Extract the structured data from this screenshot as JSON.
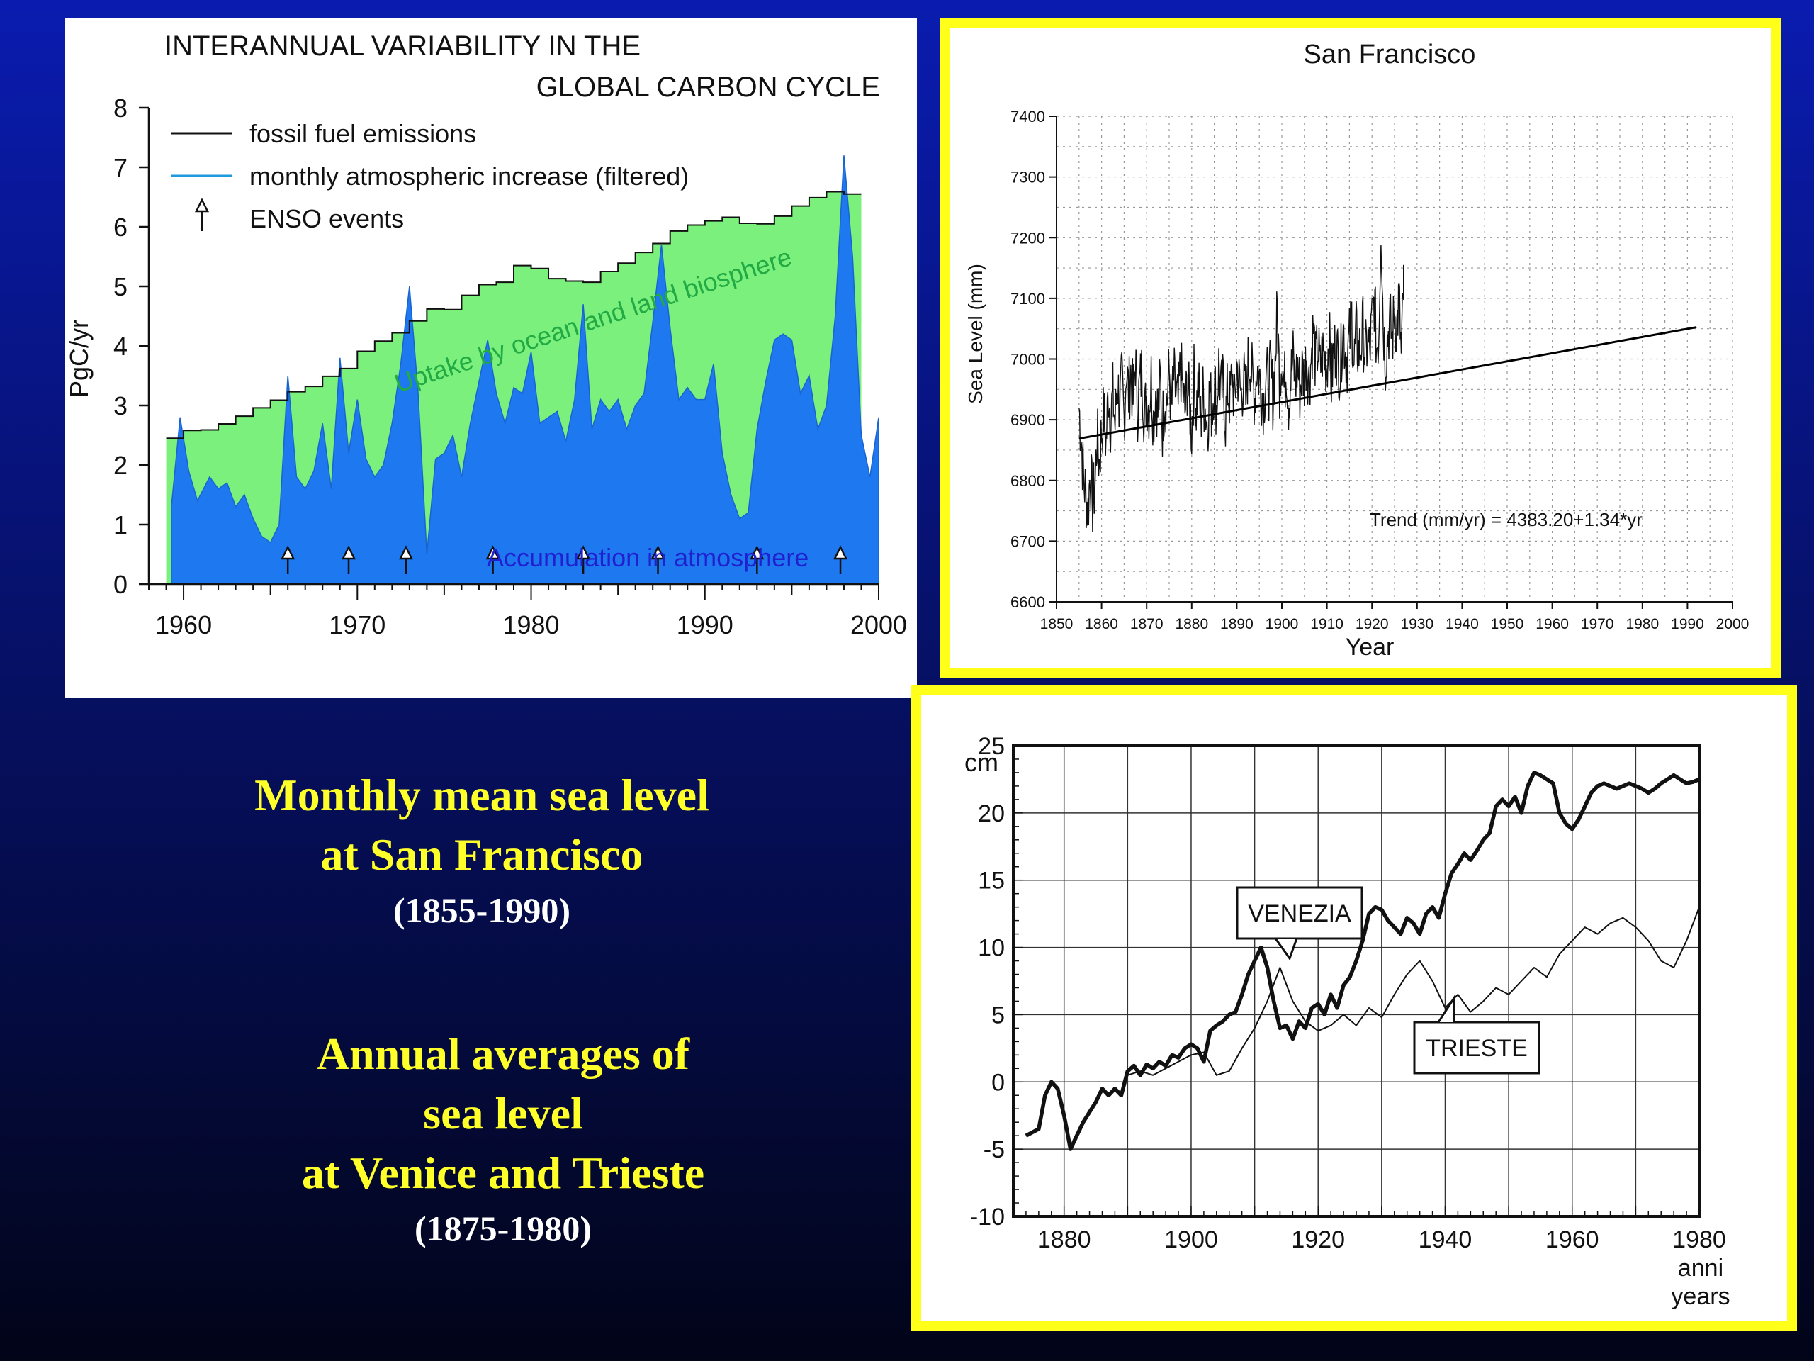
{
  "captions": {
    "sf": {
      "line1": "Monthly mean sea level",
      "line2": "at San Francisco",
      "years": "(1855-1990)"
    },
    "venice": {
      "line1": "Annual averages of",
      "line2": "sea level",
      "line3": "at Venice and Trieste",
      "years": "(1875-1980)"
    }
  },
  "colors": {
    "frame": "#ffff1a",
    "caption": "#ffff2a",
    "uptake_fill": "#7cf07c",
    "atmosphere_fill": "#1e78f0",
    "atmosphere_label": "#2020d0",
    "uptake_label": "#22aa44"
  },
  "chart_data": [
    {
      "type": "area",
      "title": "INTERANNUAL VARIABILITY IN THE GLOBAL CARBON CYCLE",
      "title_line1": "INTERANNUAL VARIABILITY IN THE",
      "title_line2": "GLOBAL CARBON CYCLE",
      "ylabel": "PgC/yr",
      "xlim": [
        1958,
        2000
      ],
      "ylim": [
        0,
        8
      ],
      "x_ticks": [
        1960,
        1970,
        1980,
        1990,
        2000
      ],
      "y_ticks": [
        0,
        1,
        2,
        3,
        4,
        5,
        6,
        7,
        8
      ],
      "legend": {
        "placement": "top-left",
        "entries": [
          "fossil fuel emissions",
          "monthly atmospheric increase (filtered)",
          "ENSO events"
        ]
      },
      "annotations": {
        "uptake": "Uptake by ocean and land biosphere",
        "atmosphere": "Accumulation in atmosphere"
      },
      "enso_events": [
        1966,
        1969.5,
        1972.8,
        1977.8,
        1983,
        1987.3,
        1993,
        1997.8
      ],
      "series": [
        {
          "name": "fossil fuel emissions",
          "x": [
            1959,
            1960,
            1961,
            1962,
            1963,
            1964,
            1965,
            1966,
            1967,
            1968,
            1969,
            1970,
            1971,
            1972,
            1973,
            1974,
            1975,
            1976,
            1977,
            1978,
            1979,
            1980,
            1981,
            1982,
            1983,
            1984,
            1985,
            1986,
            1987,
            1988,
            1989,
            1990,
            1991,
            1992,
            1993,
            1994,
            1995,
            1996,
            1997,
            1998
          ],
          "values": [
            2.45,
            2.58,
            2.59,
            2.69,
            2.82,
            2.96,
            3.09,
            3.23,
            3.32,
            3.49,
            3.62,
            3.91,
            4.08,
            4.22,
            4.42,
            4.62,
            4.61,
            4.85,
            5.03,
            5.07,
            5.35,
            5.3,
            5.13,
            5.09,
            5.07,
            5.25,
            5.39,
            5.57,
            5.72,
            5.93,
            6.03,
            6.1,
            6.16,
            6.06,
            6.05,
            6.18,
            6.35,
            6.49,
            6.59,
            6.55
          ]
        },
        {
          "name": "monthly atmospheric increase (filtered)",
          "x": [
            1959.3,
            1959.8,
            1960.3,
            1960.8,
            1961.5,
            1962,
            1962.5,
            1963,
            1963.5,
            1964,
            1964.5,
            1965,
            1965.5,
            1966,
            1966.5,
            1967,
            1967.5,
            1968,
            1968.5,
            1969,
            1969.5,
            1970,
            1970.5,
            1971,
            1971.5,
            1972,
            1972.5,
            1973,
            1973.5,
            1974,
            1974.5,
            1975,
            1975.5,
            1976,
            1976.5,
            1977,
            1977.5,
            1978,
            1978.5,
            1979,
            1979.5,
            1980,
            1980.5,
            1981,
            1981.5,
            1982,
            1982.5,
            1983,
            1983.5,
            1984,
            1984.5,
            1985,
            1985.5,
            1986,
            1986.5,
            1987,
            1987.5,
            1988,
            1988.5,
            1989,
            1989.5,
            1990,
            1990.5,
            1991,
            1991.5,
            1992,
            1992.5,
            1993,
            1993.5,
            1994,
            1994.5,
            1995,
            1995.5,
            1996,
            1996.5,
            1997,
            1997.5,
            1998,
            1998.5,
            1999,
            1999.5,
            2000
          ],
          "values": [
            1.3,
            2.8,
            1.9,
            1.4,
            1.8,
            1.6,
            1.7,
            1.3,
            1.5,
            1.1,
            0.8,
            0.7,
            1.0,
            3.5,
            1.8,
            1.6,
            1.9,
            2.7,
            1.6,
            3.8,
            2.2,
            3.1,
            2.1,
            1.8,
            2.0,
            2.7,
            3.7,
            5.0,
            3.2,
            0.5,
            2.1,
            2.2,
            2.5,
            1.8,
            2.7,
            3.4,
            4.1,
            3.2,
            2.7,
            3.3,
            3.2,
            3.9,
            2.7,
            2.8,
            2.9,
            2.4,
            3.1,
            4.7,
            2.6,
            3.1,
            2.9,
            3.1,
            2.6,
            3.0,
            3.2,
            4.4,
            5.7,
            4.3,
            3.1,
            3.3,
            3.1,
            3.1,
            3.7,
            2.2,
            1.5,
            1.1,
            1.2,
            2.6,
            3.4,
            4.1,
            4.2,
            4.1,
            3.2,
            3.5,
            2.6,
            3.0,
            4.5,
            7.2,
            5.5,
            2.5,
            1.8,
            2.8
          ]
        }
      ]
    },
    {
      "type": "line",
      "title": "San Francisco",
      "xlabel": "Year",
      "ylabel": "Sea Level (mm)",
      "xlim": [
        1850,
        2000
      ],
      "ylim": [
        6600,
        7400
      ],
      "x_ticks": [
        1850,
        1860,
        1870,
        1880,
        1890,
        1900,
        1910,
        1920,
        1930,
        1940,
        1950,
        1960,
        1970,
        1980,
        1990,
        2000
      ],
      "y_ticks": [
        6600,
        6700,
        6800,
        6900,
        7000,
        7100,
        7200,
        7300,
        7400
      ],
      "grid": true,
      "trend_label": "Trend (mm/yr) = 4383.20+1.34*yr",
      "trend": {
        "intercept": 4383.2,
        "slope": 1.34,
        "x": [
          1855,
          1992
        ]
      },
      "series": [
        {
          "name": "monthly mean sea level",
          "x_start": 1855,
          "x_step": 0.5,
          "values": [
            6920,
            6870,
            6800,
            6780,
            6750,
            6820,
            6760,
            6790,
            6870,
            6830,
            6880,
            6910,
            6860,
            6950,
            6900,
            6940,
            6890,
            6970,
            6920,
            6960,
            6900,
            6990,
            6940,
            6980,
            6930,
            7000,
            6920,
            6960,
            6980,
            6900,
            6940,
            6920,
            6970,
            6900,
            6950,
            6910,
            6960,
            6890,
            6940,
            6930,
            6980,
            6910,
            6970,
            6940,
            6920,
            6990,
            6950,
            6910,
            6960,
            6930,
            6880,
            6970,
            6920,
            6960,
            6900,
            6940,
            6920,
            6890,
            6950,
            6910,
            6970,
            6920,
            6990,
            6940,
            6960,
            6900,
            6950,
            6930,
            6980,
            6920,
            6990,
            6960,
            6940,
            6970,
            6930,
            6990,
            7000,
            6960,
            6940,
            6990,
            6970,
            6950,
            6930,
            6980,
            6950,
            6980,
            6940,
            6990,
            7080,
            6960,
            7010,
            6950,
            6990,
            6930,
            6970,
            7000,
            6960,
            6990,
            6950,
            6980,
            6970,
            7010,
            6960,
            7000,
            7050,
            6990,
            7020,
            6980,
            7010,
            7000,
            6990,
            7040,
            6960,
            7010,
            7020,
            7000,
            6980,
            7060,
            7020,
            7000,
            7030,
            7070,
            6990,
            7040,
            7010,
            7020,
            7050,
            7000,
            7030,
            7010,
            7060,
            7100,
            7020,
            7040,
            7230,
            7060,
            7000,
            7040,
            7060,
            7030,
            7080,
            7050,
            7100,
            7000,
            7110
          ]
        }
      ]
    },
    {
      "type": "line",
      "ylabel": "cm",
      "xlabel": "anni\nyears",
      "xlabel_line1": "anni",
      "xlabel_line2": "years",
      "xlim": [
        1872,
        1980
      ],
      "ylim": [
        -10,
        25
      ],
      "x_ticks": [
        1880,
        1900,
        1920,
        1940,
        1960,
        1980
      ],
      "y_ticks": [
        -10,
        -5,
        0,
        5,
        10,
        15,
        20,
        25
      ],
      "grid": true,
      "series": [
        {
          "name": "VENEZIA",
          "x": [
            1874,
            1876,
            1877,
            1878,
            1879,
            1880,
            1881,
            1882,
            1883,
            1885,
            1886,
            1887,
            1888,
            1889,
            1890,
            1891,
            1892,
            1893,
            1894,
            1895,
            1896,
            1897,
            1898,
            1899,
            1900,
            1901,
            1902,
            1903,
            1904,
            1905,
            1906,
            1907,
            1908,
            1909,
            1910,
            1911,
            1912,
            1913,
            1914,
            1915,
            1916,
            1917,
            1918,
            1919,
            1920,
            1921,
            1922,
            1923,
            1924,
            1925,
            1926,
            1927,
            1928,
            1929,
            1930,
            1931,
            1932,
            1933,
            1934,
            1935,
            1936,
            1937,
            1938,
            1939,
            1940,
            1941,
            1942,
            1943,
            1944,
            1945,
            1946,
            1947,
            1948,
            1949,
            1950,
            1951,
            1952,
            1953,
            1954,
            1955,
            1956,
            1957,
            1958,
            1959,
            1960,
            1961,
            1962,
            1963,
            1964,
            1965,
            1966,
            1967,
            1968,
            1969,
            1970,
            1971,
            1972,
            1973,
            1974,
            1975,
            1976,
            1977,
            1978,
            1979,
            1980
          ],
          "values": [
            -4,
            -3.5,
            -1,
            0,
            -0.5,
            -2.5,
            -5,
            -4,
            -3,
            -1.5,
            -0.5,
            -1,
            -0.5,
            -1,
            0.8,
            1.2,
            0.5,
            1.3,
            1.0,
            1.5,
            1.2,
            2.0,
            1.8,
            2.5,
            2.8,
            2.5,
            1.5,
            3.8,
            4.2,
            4.5,
            5.0,
            5.2,
            6.5,
            8.0,
            9.0,
            10.0,
            8.5,
            6.0,
            4.0,
            4.2,
            3.2,
            4.5,
            4.0,
            5.5,
            5.8,
            5.0,
            6.5,
            5.5,
            7.2,
            7.8,
            9.0,
            10.5,
            12.5,
            13.0,
            12.8,
            12.0,
            11.5,
            11.0,
            12.2,
            11.8,
            11.0,
            12.5,
            13.0,
            12.2,
            14.0,
            15.5,
            16.2,
            17.0,
            16.5,
            17.2,
            18.0,
            18.5,
            20.5,
            21.0,
            20.5,
            21.2,
            20.0,
            22.0,
            23.0,
            22.8,
            22.5,
            22.2,
            20.0,
            19.2,
            18.8,
            19.5,
            20.5,
            21.5,
            22.0,
            22.2,
            22.0,
            21.8,
            22.0,
            22.2,
            22.0,
            21.8,
            21.5,
            21.8,
            22.2,
            22.5,
            22.8,
            22.5,
            22.2,
            22.3,
            22.5
          ]
        },
        {
          "name": "TRIESTE",
          "x": [
            1890,
            1892,
            1894,
            1896,
            1898,
            1900,
            1902,
            1904,
            1906,
            1908,
            1910,
            1912,
            1914,
            1916,
            1918,
            1920,
            1922,
            1924,
            1926,
            1928,
            1930,
            1932,
            1934,
            1936,
            1938,
            1940,
            1942,
            1944,
            1946,
            1948,
            1950,
            1952,
            1954,
            1956,
            1958,
            1960,
            1962,
            1964,
            1966,
            1968,
            1970,
            1972,
            1974,
            1976,
            1978,
            1980
          ],
          "values": [
            0.5,
            0.8,
            0.5,
            1.0,
            1.5,
            2.0,
            2.2,
            0.5,
            0.8,
            2.5,
            4.0,
            6.0,
            8.5,
            6.0,
            4.5,
            3.8,
            4.2,
            5.0,
            4.2,
            5.5,
            4.8,
            6.5,
            8.0,
            9.0,
            7.5,
            5.5,
            6.5,
            5.2,
            6.0,
            7.0,
            6.5,
            7.5,
            8.5,
            7.8,
            9.5,
            10.5,
            11.5,
            11.0,
            11.8,
            12.2,
            11.5,
            10.5,
            9.0,
            8.5,
            10.5,
            13.0
          ]
        }
      ]
    }
  ]
}
